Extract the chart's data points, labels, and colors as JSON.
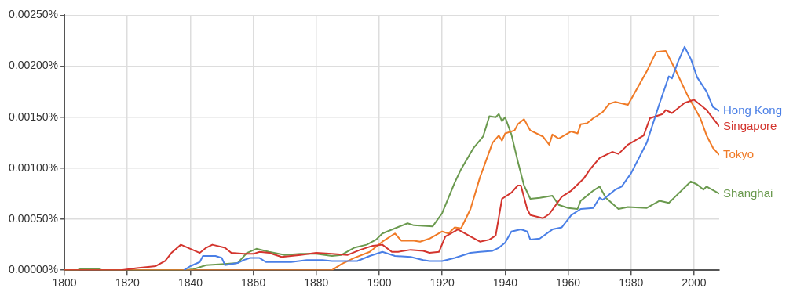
{
  "chart_data": {
    "type": "line",
    "xlim": [
      1800,
      2008
    ],
    "xticks": [
      1800,
      1820,
      1840,
      1860,
      1880,
      1900,
      1920,
      1940,
      1960,
      1980,
      2000
    ],
    "ylim": [
      0,
      0.0025
    ],
    "yticks": [
      {
        "value": 0,
        "label": "0.00000%"
      },
      {
        "value": 0.0005,
        "label": "0.00050%"
      },
      {
        "value": 0.001,
        "label": "0.00100%"
      },
      {
        "value": 0.0015,
        "label": "0.00150%"
      },
      {
        "value": 0.002,
        "label": "0.00200%"
      },
      {
        "value": 0.0025,
        "label": "0.00250%"
      }
    ],
    "grid": true,
    "legend": "right",
    "marker": "none",
    "line_style": "solid",
    "series": [
      {
        "name": "Hong Kong",
        "color": "#4a7fe6",
        "x": [
          1838,
          1840,
          1843,
          1844,
          1848,
          1850,
          1851,
          1855,
          1857,
          1859,
          1862,
          1864,
          1872,
          1877,
          1882,
          1885,
          1893,
          1897,
          1901,
          1905,
          1910,
          1914,
          1916,
          1920,
          1924,
          1929,
          1932,
          1936,
          1938,
          1940,
          1942,
          1945,
          1947,
          1948,
          1951,
          1955,
          1958,
          1961,
          1964,
          1968,
          1970,
          1971,
          1975,
          1977,
          1980,
          1985,
          1989,
          1992,
          1993,
          1995,
          1997,
          1998,
          1999,
          2001,
          2004,
          2006,
          2008
        ],
        "values": [
          0,
          4e-05,
          8e-05,
          0.00014,
          0.00014,
          0.00012,
          5e-05,
          7e-05,
          0.0001,
          0.00012,
          0.00012,
          8e-05,
          8e-05,
          0.0001,
          0.0001,
          9e-05,
          9e-05,
          0.00014,
          0.00018,
          0.00014,
          0.00013,
          0.0001,
          9e-05,
          9e-05,
          0.00012,
          0.00017,
          0.00018,
          0.00019,
          0.00022,
          0.00027,
          0.00038,
          0.0004,
          0.00038,
          0.0003,
          0.00031,
          0.0004,
          0.00042,
          0.00054,
          0.0006,
          0.00061,
          0.00071,
          0.00069,
          0.00079,
          0.00082,
          0.00095,
          0.00125,
          0.00163,
          0.0019,
          0.00188,
          0.00205,
          0.00219,
          0.00213,
          0.00207,
          0.00189,
          0.00175,
          0.0016,
          0.00156
        ]
      },
      {
        "name": "Singapore",
        "color": "#d3352e",
        "x": [
          1800,
          1818,
          1823,
          1829,
          1832,
          1834,
          1837,
          1840,
          1843,
          1845,
          1847,
          1851,
          1853,
          1857,
          1860,
          1862,
          1865,
          1869,
          1875,
          1880,
          1885,
          1890,
          1894,
          1898,
          1901,
          1904,
          1906,
          1910,
          1914,
          1916,
          1919,
          1921,
          1925,
          1929,
          1932,
          1935,
          1937,
          1939,
          1942,
          1944,
          1945,
          1947,
          1948,
          1952,
          1954,
          1958,
          1961,
          1965,
          1967,
          1970,
          1974,
          1976,
          1979,
          1984,
          1986,
          1990,
          1991,
          1993,
          1997,
          2000,
          2004,
          2008
        ],
        "values": [
          0,
          0,
          2e-05,
          4e-05,
          9e-05,
          0.00017,
          0.00025,
          0.00021,
          0.00017,
          0.00022,
          0.00025,
          0.00022,
          0.00017,
          0.00016,
          0.00016,
          0.00018,
          0.00017,
          0.00013,
          0.00015,
          0.00017,
          0.00016,
          0.00015,
          0.0002,
          0.00024,
          0.00025,
          0.00018,
          0.00018,
          0.0002,
          0.00019,
          0.00017,
          0.00018,
          0.00033,
          0.0004,
          0.00033,
          0.00028,
          0.0003,
          0.00034,
          0.0007,
          0.00076,
          0.00083,
          0.00083,
          0.0006,
          0.00054,
          0.00051,
          0.00055,
          0.00072,
          0.00078,
          0.0009,
          0.00099,
          0.0011,
          0.00116,
          0.00114,
          0.00123,
          0.00132,
          0.00149,
          0.00153,
          0.00157,
          0.00154,
          0.00164,
          0.00167,
          0.00157,
          0.00141
        ]
      },
      {
        "name": "Tokyo",
        "color": "#f07b27",
        "x": [
          1800,
          1885,
          1888,
          1892,
          1897,
          1901,
          1905,
          1907,
          1911,
          1913,
          1916,
          1920,
          1922,
          1924,
          1926,
          1929,
          1932,
          1936,
          1938,
          1939,
          1940,
          1943,
          1944,
          1946,
          1948,
          1952,
          1954,
          1955,
          1957,
          1961,
          1963,
          1964,
          1966,
          1968,
          1971,
          1973,
          1975,
          1979,
          1985,
          1988,
          1991,
          1994,
          1998,
          2002,
          2004,
          2006,
          2008
        ],
        "values": [
          0,
          0,
          6e-05,
          0.00012,
          0.00018,
          0.00028,
          0.00036,
          0.00029,
          0.00029,
          0.00028,
          0.00031,
          0.00038,
          0.00036,
          0.00042,
          0.00041,
          0.0006,
          0.00091,
          0.00125,
          0.00132,
          0.00127,
          0.00134,
          0.00137,
          0.00143,
          0.00148,
          0.00137,
          0.00131,
          0.00123,
          0.00133,
          0.00129,
          0.00136,
          0.00134,
          0.00143,
          0.00144,
          0.00149,
          0.00155,
          0.00163,
          0.00165,
          0.00162,
          0.00195,
          0.00214,
          0.00215,
          0.00197,
          0.00171,
          0.00149,
          0.00132,
          0.0012,
          0.00113
        ]
      },
      {
        "name": "Shanghai",
        "color": "#6b9a4f",
        "x": [
          1800,
          1804,
          1805,
          1811,
          1812,
          1838,
          1841,
          1845,
          1850,
          1855,
          1858,
          1861,
          1865,
          1870,
          1875,
          1880,
          1885,
          1888,
          1892,
          1896,
          1899,
          1901,
          1909,
          1911,
          1917,
          1920,
          1924,
          1926,
          1930,
          1933,
          1935,
          1937,
          1938,
          1939,
          1940,
          1942,
          1944,
          1946,
          1948,
          1951,
          1955,
          1957,
          1960,
          1963,
          1964,
          1968,
          1970,
          1972,
          1976,
          1979,
          1985,
          1989,
          1992,
          1994,
          1999,
          2001,
          2003,
          2004,
          2008
        ],
        "values": [
          0,
          0,
          1e-05,
          1e-05,
          0,
          0,
          1e-05,
          5e-05,
          6e-05,
          7e-05,
          0.00017,
          0.00021,
          0.00018,
          0.00015,
          0.00016,
          0.00016,
          0.00014,
          0.00015,
          0.00022,
          0.00025,
          0.0003,
          0.00036,
          0.00046,
          0.00044,
          0.00043,
          0.00056,
          0.00086,
          0.00099,
          0.0012,
          0.00131,
          0.00151,
          0.0015,
          0.00153,
          0.00146,
          0.0015,
          0.00133,
          0.00107,
          0.00083,
          0.0007,
          0.00071,
          0.00073,
          0.00064,
          0.00061,
          0.0006,
          0.00068,
          0.00078,
          0.00082,
          0.00071,
          0.0006,
          0.00062,
          0.00061,
          0.00068,
          0.00066,
          0.00072,
          0.00087,
          0.00084,
          0.00079,
          0.00082,
          0.00075
        ]
      }
    ]
  }
}
